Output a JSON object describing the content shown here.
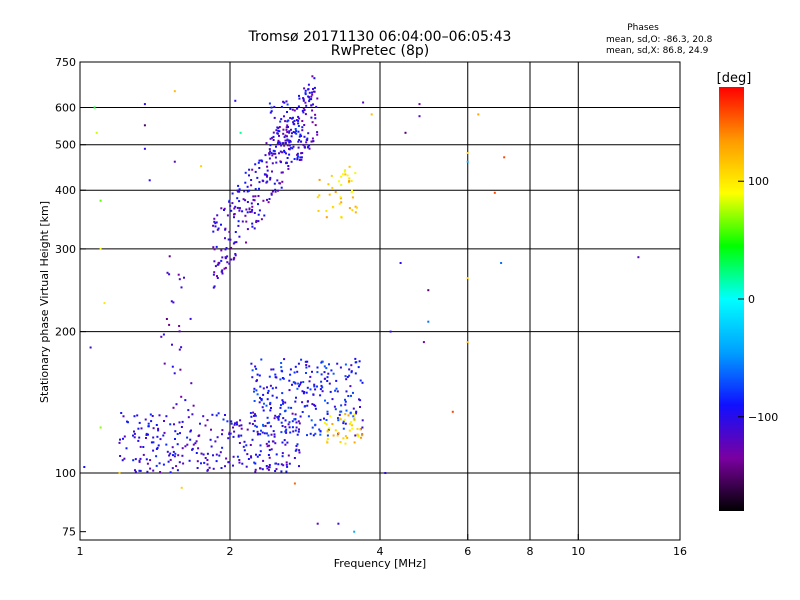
{
  "chart_data": {
    "type": "scatter",
    "title": "Tromsø 20171130 06:04:00–06:05:43",
    "subtitle": "RwPretec (8p)",
    "xlabel": "Frequency [MHz]",
    "ylabel": "Stationary phase Virtual Height [km]",
    "x_scale": "log",
    "y_scale": "log",
    "xlim": [
      1,
      16
    ],
    "ylim": [
      72,
      750
    ],
    "x_ticks": [
      1,
      2,
      4,
      6,
      8,
      10,
      16
    ],
    "x_tick_labels": [
      "1",
      "2",
      "4",
      "6",
      "8",
      "10",
      "16"
    ],
    "x_gridlines": [
      2,
      4,
      6,
      8,
      10
    ],
    "y_ticks": [
      75,
      100,
      200,
      300,
      400,
      500,
      600,
      750
    ],
    "y_tick_labels": [
      "75",
      "100",
      "200",
      "300",
      "400",
      "500",
      "600",
      "750"
    ],
    "y_gridlines": [
      100,
      200,
      300,
      400,
      500,
      600
    ],
    "grid": true,
    "phase_info": {
      "heading": "Phases",
      "o_line": "mean, sd,O: -86.3, 20.8",
      "x_line": "mean, sd,X:  86.8, 24.9"
    },
    "colorbar": {
      "label": "[deg]",
      "range": [
        -180,
        180
      ],
      "ticks": [
        100,
        0,
        -100
      ],
      "tick_labels": [
        "100",
        "0",
        "−100"
      ],
      "stops": [
        "#000000",
        "#7a00a0",
        "#1010ff",
        "#00a0ff",
        "#00ffff",
        "#00ff00",
        "#ffff00",
        "#ff9900",
        "#ff0000"
      ]
    },
    "clusters": [
      {
        "region": "F-layer trace",
        "f": [
          1.85,
          3.0
        ],
        "h": [
          290,
          620
        ],
        "phase_deg": -110,
        "count": 340
      },
      {
        "region": "F-layer upper",
        "f": [
          2.4,
          2.8
        ],
        "h": [
          450,
          620
        ],
        "phase_deg": -100,
        "count": 60
      },
      {
        "region": "F-layer yellow patch",
        "f": [
          3.0,
          3.6
        ],
        "h": [
          350,
          450
        ],
        "phase_deg": 110,
        "count": 40
      },
      {
        "region": "E/Es layer low band",
        "f": [
          1.2,
          2.8
        ],
        "h": [
          100,
          135
        ],
        "phase_deg": -105,
        "count": 300
      },
      {
        "region": "E/Es layer upper band",
        "f": [
          2.2,
          3.7
        ],
        "h": [
          120,
          175
        ],
        "phase_deg": -90,
        "count": 260
      },
      {
        "region": "Es yellow patch",
        "f": [
          3.1,
          3.7
        ],
        "h": [
          115,
          135
        ],
        "phase_deg": 110,
        "count": 40
      },
      {
        "region": "Low-frequency column",
        "f": [
          1.45,
          1.7
        ],
        "h": [
          135,
          300
        ],
        "phase_deg": -120,
        "count": 30
      }
    ],
    "sparse_points": [
      {
        "f": 1.02,
        "h": 103,
        "phase_deg": -90
      },
      {
        "f": 1.05,
        "h": 185,
        "phase_deg": -110
      },
      {
        "f": 1.07,
        "h": 600,
        "phase_deg": 40
      },
      {
        "f": 1.08,
        "h": 530,
        "phase_deg": 80
      },
      {
        "f": 1.1,
        "h": 380,
        "phase_deg": 60
      },
      {
        "f": 1.1,
        "h": 300,
        "phase_deg": 90
      },
      {
        "f": 1.12,
        "h": 230,
        "phase_deg": 100
      },
      {
        "f": 1.1,
        "h": 125,
        "phase_deg": 70
      },
      {
        "f": 1.35,
        "h": 610,
        "phase_deg": -100
      },
      {
        "f": 1.35,
        "h": 550,
        "phase_deg": -150
      },
      {
        "f": 1.35,
        "h": 490,
        "phase_deg": -100
      },
      {
        "f": 1.38,
        "h": 420,
        "phase_deg": -100
      },
      {
        "f": 1.55,
        "h": 650,
        "phase_deg": 120
      },
      {
        "f": 1.55,
        "h": 460,
        "phase_deg": -120
      },
      {
        "f": 1.75,
        "h": 450,
        "phase_deg": 110
      },
      {
        "f": 2.05,
        "h": 620,
        "phase_deg": -100
      },
      {
        "f": 2.1,
        "h": 530,
        "phase_deg": 20
      },
      {
        "f": 3.35,
        "h": 350,
        "phase_deg": 110
      },
      {
        "f": 3.7,
        "h": 615,
        "phase_deg": -120
      },
      {
        "f": 3.85,
        "h": 580,
        "phase_deg": 120
      },
      {
        "f": 4.1,
        "h": 100,
        "phase_deg": -100
      },
      {
        "f": 4.2,
        "h": 200,
        "phase_deg": -100
      },
      {
        "f": 4.4,
        "h": 280,
        "phase_deg": -100
      },
      {
        "f": 4.5,
        "h": 530,
        "phase_deg": -150
      },
      {
        "f": 4.8,
        "h": 610,
        "phase_deg": -130
      },
      {
        "f": 4.8,
        "h": 575,
        "phase_deg": -120
      },
      {
        "f": 5.0,
        "h": 245,
        "phase_deg": -150
      },
      {
        "f": 5.0,
        "h": 210,
        "phase_deg": -60
      },
      {
        "f": 4.9,
        "h": 190,
        "phase_deg": -130
      },
      {
        "f": 5.6,
        "h": 135,
        "phase_deg": 160
      },
      {
        "f": 6.0,
        "h": 480,
        "phase_deg": 110
      },
      {
        "f": 6.0,
        "h": 460,
        "phase_deg": -40
      },
      {
        "f": 6.0,
        "h": 260,
        "phase_deg": 110
      },
      {
        "f": 6.0,
        "h": 190,
        "phase_deg": 120
      },
      {
        "f": 6.3,
        "h": 580,
        "phase_deg": 130
      },
      {
        "f": 6.8,
        "h": 395,
        "phase_deg": 160
      },
      {
        "f": 7.0,
        "h": 280,
        "phase_deg": -60
      },
      {
        "f": 7.1,
        "h": 470,
        "phase_deg": 160
      },
      {
        "f": 13.2,
        "h": 288,
        "phase_deg": -120
      },
      {
        "f": 2.7,
        "h": 95,
        "phase_deg": 150
      },
      {
        "f": 3.0,
        "h": 78,
        "phase_deg": -120
      },
      {
        "f": 3.3,
        "h": 78,
        "phase_deg": -110
      },
      {
        "f": 3.55,
        "h": 75,
        "phase_deg": -40
      },
      {
        "f": 1.6,
        "h": 93,
        "phase_deg": 110
      },
      {
        "f": 1.2,
        "h": 100,
        "phase_deg": 110
      }
    ]
  }
}
